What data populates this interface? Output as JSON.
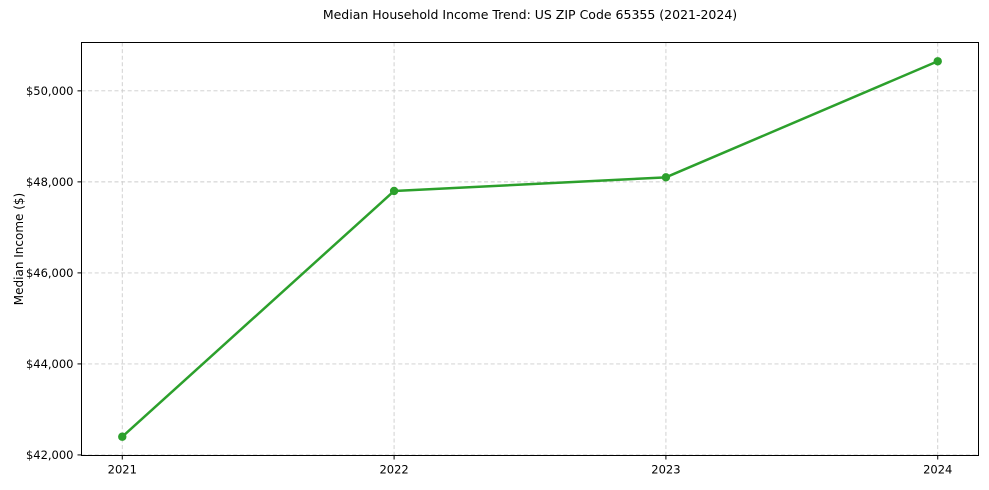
{
  "chart_data": {
    "type": "line",
    "title": "Median Household Income Trend: US ZIP Code 65355 (2021-2024)",
    "xlabel": "",
    "ylabel": "Median Income ($)",
    "categories": [
      "2021",
      "2022",
      "2023",
      "2024"
    ],
    "series": [
      {
        "name": "Median Household Income",
        "values": [
          42400,
          47800,
          48100,
          50650
        ]
      }
    ],
    "ytick_values": [
      42000,
      44000,
      46000,
      48000,
      50000
    ],
    "ytick_labels": [
      "$42,000",
      "$44,000",
      "$46,000",
      "$48,000",
      "$50,000"
    ],
    "ylim": [
      41987.5,
      51062.5
    ],
    "grid": true,
    "grid_style": "dashed",
    "legend_position": "none",
    "colors": {
      "line": "#2ca02c",
      "marker": "#2ca02c",
      "grid": "#cccccc",
      "spine": "#000000",
      "background": "#ffffff",
      "text": "#000000"
    }
  }
}
